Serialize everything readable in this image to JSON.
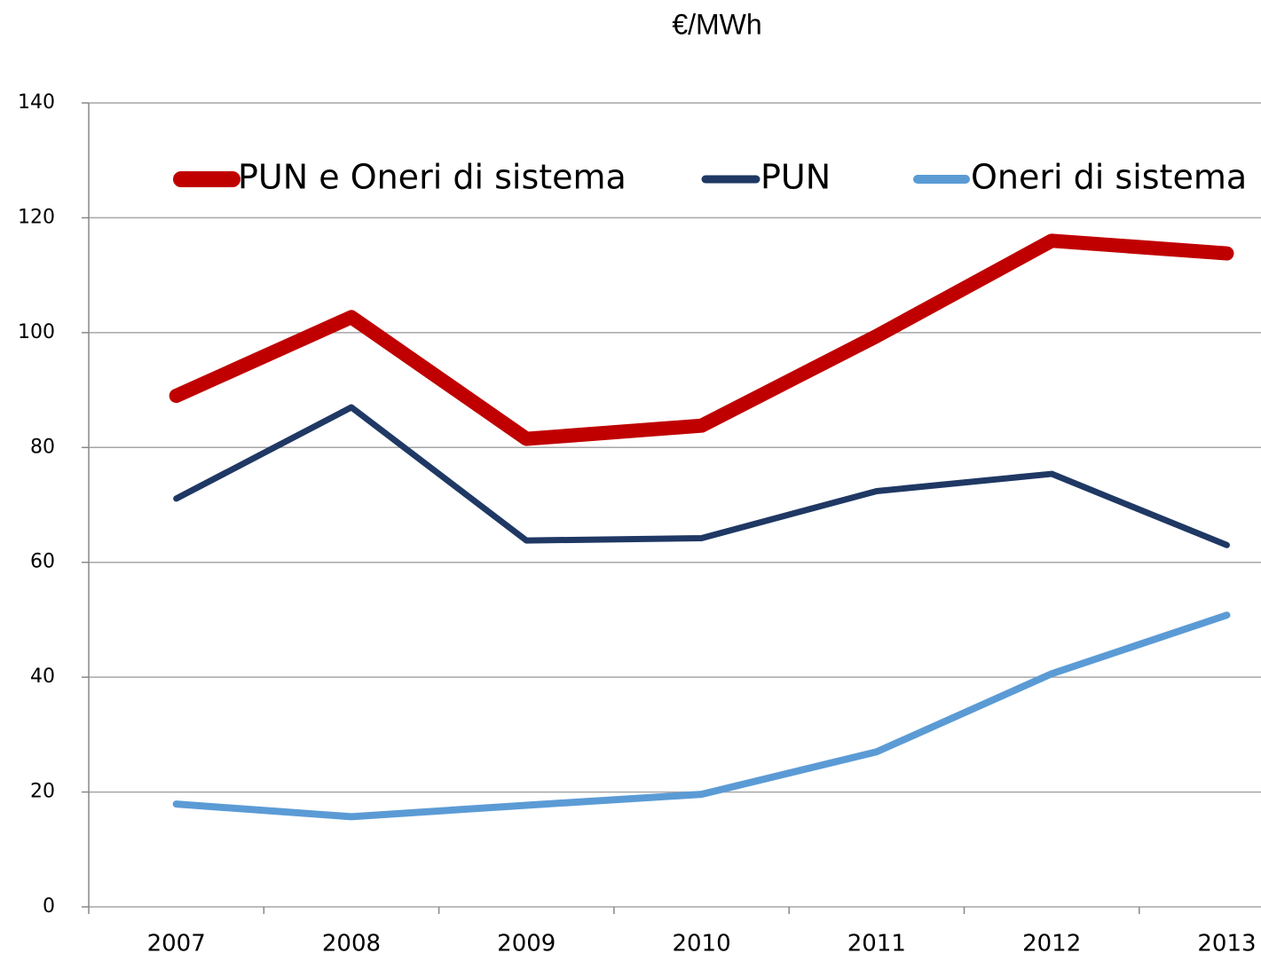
{
  "chart_data": {
    "type": "line",
    "title": "€/MWh",
    "categories": [
      "2007",
      "2008",
      "2009",
      "2010",
      "2011",
      "2012",
      "2013"
    ],
    "series": [
      {
        "name": "PUN e Oneri di sistema",
        "color": "#c00000",
        "values": [
          89,
          102.7,
          81.5,
          83.8,
          99.4,
          116,
          113.8
        ]
      },
      {
        "name": "PUN",
        "color": "#1f3864",
        "values": [
          71.1,
          87,
          63.8,
          64.2,
          72.4,
          75.4,
          63
        ]
      },
      {
        "name": "Oneri di sistema",
        "color": "#5b9bd5",
        "values": [
          17.9,
          15.7,
          17.7,
          19.6,
          27,
          40.6,
          50.8
        ]
      }
    ],
    "ylim": [
      0,
      140
    ],
    "yticks": [
      0,
      20,
      40,
      60,
      80,
      100,
      120,
      140
    ],
    "grid": true,
    "legend": "top"
  }
}
